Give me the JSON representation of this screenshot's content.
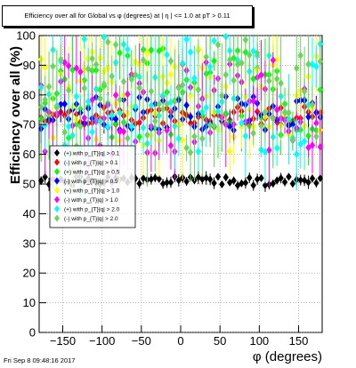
{
  "title": "Efficiency over all for Global vs φ (degrees) at | η | <= 1.0 at pT > 0.11",
  "timestamp": "Fri Sep  8 09:48:16 2017",
  "chart_data": {
    "type": "scatter",
    "xlabel": "φ (degrees)",
    "ylabel": "Efficiency over all (%)",
    "xlim": [
      -180,
      180
    ],
    "ylim": [
      0,
      100
    ],
    "xticks": [
      -150,
      -100,
      -50,
      0,
      50,
      100,
      150
    ],
    "yticks": [
      0,
      10,
      20,
      30,
      40,
      50,
      60,
      70,
      80,
      90,
      100
    ],
    "grid": true,
    "legend_position": "left-middle",
    "series": [
      {
        "name": "(+) with p_{T}|q| > 0.1",
        "color": "#000000",
        "center": 51,
        "spread": 1.5,
        "seed": 1
      },
      {
        "name": "(-) with p_{T}|q| > 0.1",
        "color": "#ff0000",
        "center": 73,
        "spread": 3,
        "seed": 2
      },
      {
        "name": "(+) with p_{T}|q| > 0.5",
        "color": "#00ff00",
        "center": 81,
        "spread": 16,
        "seed": 3
      },
      {
        "name": "(-) with p_{T}|q| > 0.5",
        "color": "#0000ff",
        "center": 74,
        "spread": 6,
        "seed": 4
      },
      {
        "name": "(+) with p_{T}|q| > 1.0",
        "color": "#ffff00",
        "center": 78,
        "spread": 18,
        "seed": 5
      },
      {
        "name": "(-) with p_{T}|q| > 1.0",
        "color": "#ff00ff",
        "center": 76,
        "spread": 16,
        "seed": 6
      },
      {
        "name": "(+) with p_{T}|q| > 2.0",
        "color": "#00ffff",
        "center": 80,
        "spread": 20,
        "seed": 7
      },
      {
        "name": "(-) with p_{T}|q| > 2.0",
        "color": "#6fd35f",
        "center": 80,
        "spread": 20,
        "seed": 8
      }
    ]
  }
}
